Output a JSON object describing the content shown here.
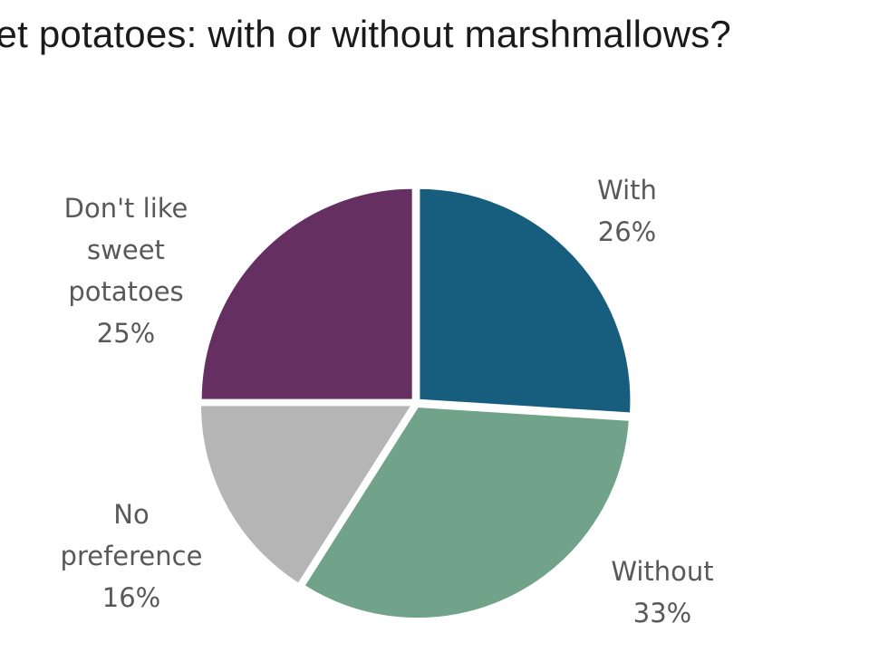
{
  "chart_data": {
    "type": "pie",
    "title": "eet potatoes: with or without marshmallows?",
    "slices": [
      {
        "label_lines": [
          "With"
        ],
        "value": 26,
        "value_label": "26%",
        "color": "#175d7d"
      },
      {
        "label_lines": [
          "Without"
        ],
        "value": 33,
        "value_label": "33%",
        "color": "#70a38a"
      },
      {
        "label_lines": [
          "No",
          "preference"
        ],
        "value": 16,
        "value_label": "16%",
        "color": "#b5b5b5"
      },
      {
        "label_lines": [
          "Don't like",
          "sweet",
          "potatoes"
        ],
        "value": 25,
        "value_label": "25%",
        "color": "#662f62"
      }
    ],
    "start_angle_deg": 0,
    "direction": "clockwise",
    "legend": "none"
  }
}
